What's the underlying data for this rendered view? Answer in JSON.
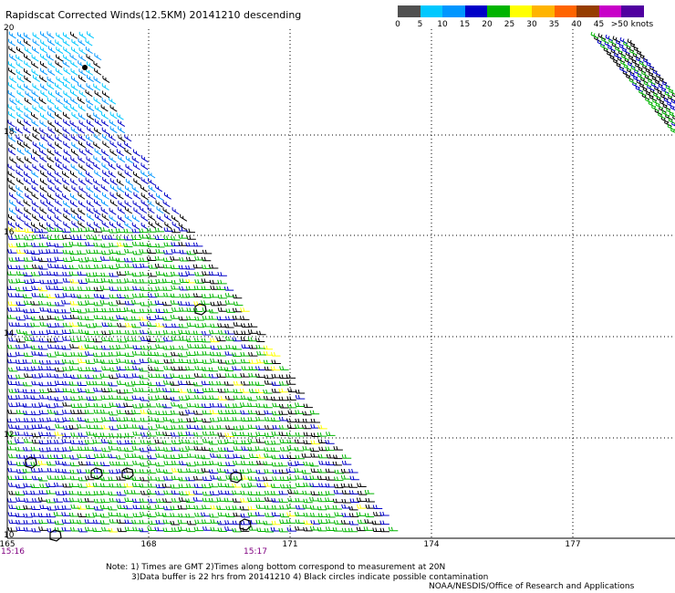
{
  "title": "Rapidscat Corrected Winds(12.5KM) 20141210 descending",
  "legend": {
    "labels": [
      "0",
      "5",
      "10",
      "15",
      "20",
      "25",
      "30",
      "35",
      "40",
      "45",
      ">50 knots"
    ],
    "colors": [
      "#505050",
      "#00c8ff",
      "#0096ff",
      "#0000c8",
      "#00b400",
      "#ffff00",
      "#ffb400",
      "#ff6400",
      "#963c00",
      "#c800c8",
      "#5000a0"
    ]
  },
  "map": {
    "lat_labels": [
      "20",
      "18",
      "16",
      "14",
      "12",
      "10"
    ],
    "lon_labels": [
      "165",
      "168",
      "171",
      "174",
      "177"
    ],
    "time_labels": [
      "15:16",
      "15:17"
    ]
  },
  "notes": {
    "line1": "Note: 1) Times are GMT 2)Times along bottom correspond to measurement at 20N",
    "line2": "3)Data buffer is 22 hrs from 20141210 4) Black circles indicate possible contamination"
  },
  "credit": "NOAA/NESDIS/Office of Research and Applications"
}
